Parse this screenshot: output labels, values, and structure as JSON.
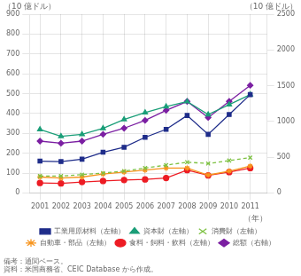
{
  "chart_data": {
    "type": "line",
    "x": [
      2001,
      2002,
      2003,
      2004,
      2005,
      2006,
      2007,
      2008,
      2009,
      2010,
      2011
    ],
    "xlim": [
      2000.5,
      2011.8
    ],
    "xticks": [
      2001,
      2002,
      2003,
      2004,
      2005,
      2006,
      2007,
      2008,
      2009,
      2010,
      2011
    ],
    "ylim": [
      0,
      900
    ],
    "yticks": [
      0,
      100,
      200,
      300,
      400,
      500,
      600,
      700,
      800,
      900
    ],
    "y2lim": [
      0,
      2500
    ],
    "y2ticks": [
      0,
      500,
      1000,
      1500,
      2000,
      2500
    ],
    "xlabel": "（年）",
    "ylabel": "（10 億ドル）",
    "y2label": "（10 億ドル）",
    "annotations": [
      "備考：通関ベース。",
      "資料：米国商務省、CEIC Database から作成。"
    ],
    "grid": true,
    "legend": "bottom",
    "series": [
      {
        "name": "工業用原材料（左軸）",
        "color": "#1F2D8A",
        "marker": "square",
        "line_style": "solid",
        "axis": "y",
        "values": [
          160,
          158,
          170,
          205,
          230,
          280,
          320,
          390,
          295,
          395,
          495
        ]
      },
      {
        "name": "資本財（左軸）",
        "color": "#1A9E78",
        "marker": "triangle",
        "line_style": "solid",
        "axis": "y",
        "values": [
          320,
          285,
          295,
          325,
          370,
          405,
          435,
          460,
          395,
          445,
          495
        ]
      },
      {
        "name": "消費財（左軸）",
        "color": "#7DC142",
        "marker": "x",
        "line_style": "dashed",
        "axis": "y",
        "values": [
          85,
          85,
          92,
          100,
          110,
          125,
          140,
          155,
          148,
          163,
          178
        ]
      },
      {
        "name": "自動車・部品（左軸）",
        "color": "#F7941D",
        "marker": "star",
        "line_style": "solid",
        "axis": "y",
        "values": [
          80,
          75,
          80,
          95,
          105,
          115,
          125,
          125,
          90,
          110,
          135
        ]
      },
      {
        "name": "食料・飼料・飲料（左軸）",
        "color": "#ED1C24",
        "marker": "circle",
        "line_style": "solid",
        "axis": "y",
        "values": [
          50,
          48,
          55,
          60,
          65,
          68,
          75,
          115,
          88,
          105,
          125
        ]
      },
      {
        "name": "総額（右軸）",
        "color": "#7B1FA2",
        "marker": "diamond",
        "line_style": "solid",
        "axis": "y2",
        "values": [
          725,
          695,
          725,
          820,
          905,
          1015,
          1155,
          1280,
          1055,
          1280,
          1505
        ]
      }
    ]
  }
}
